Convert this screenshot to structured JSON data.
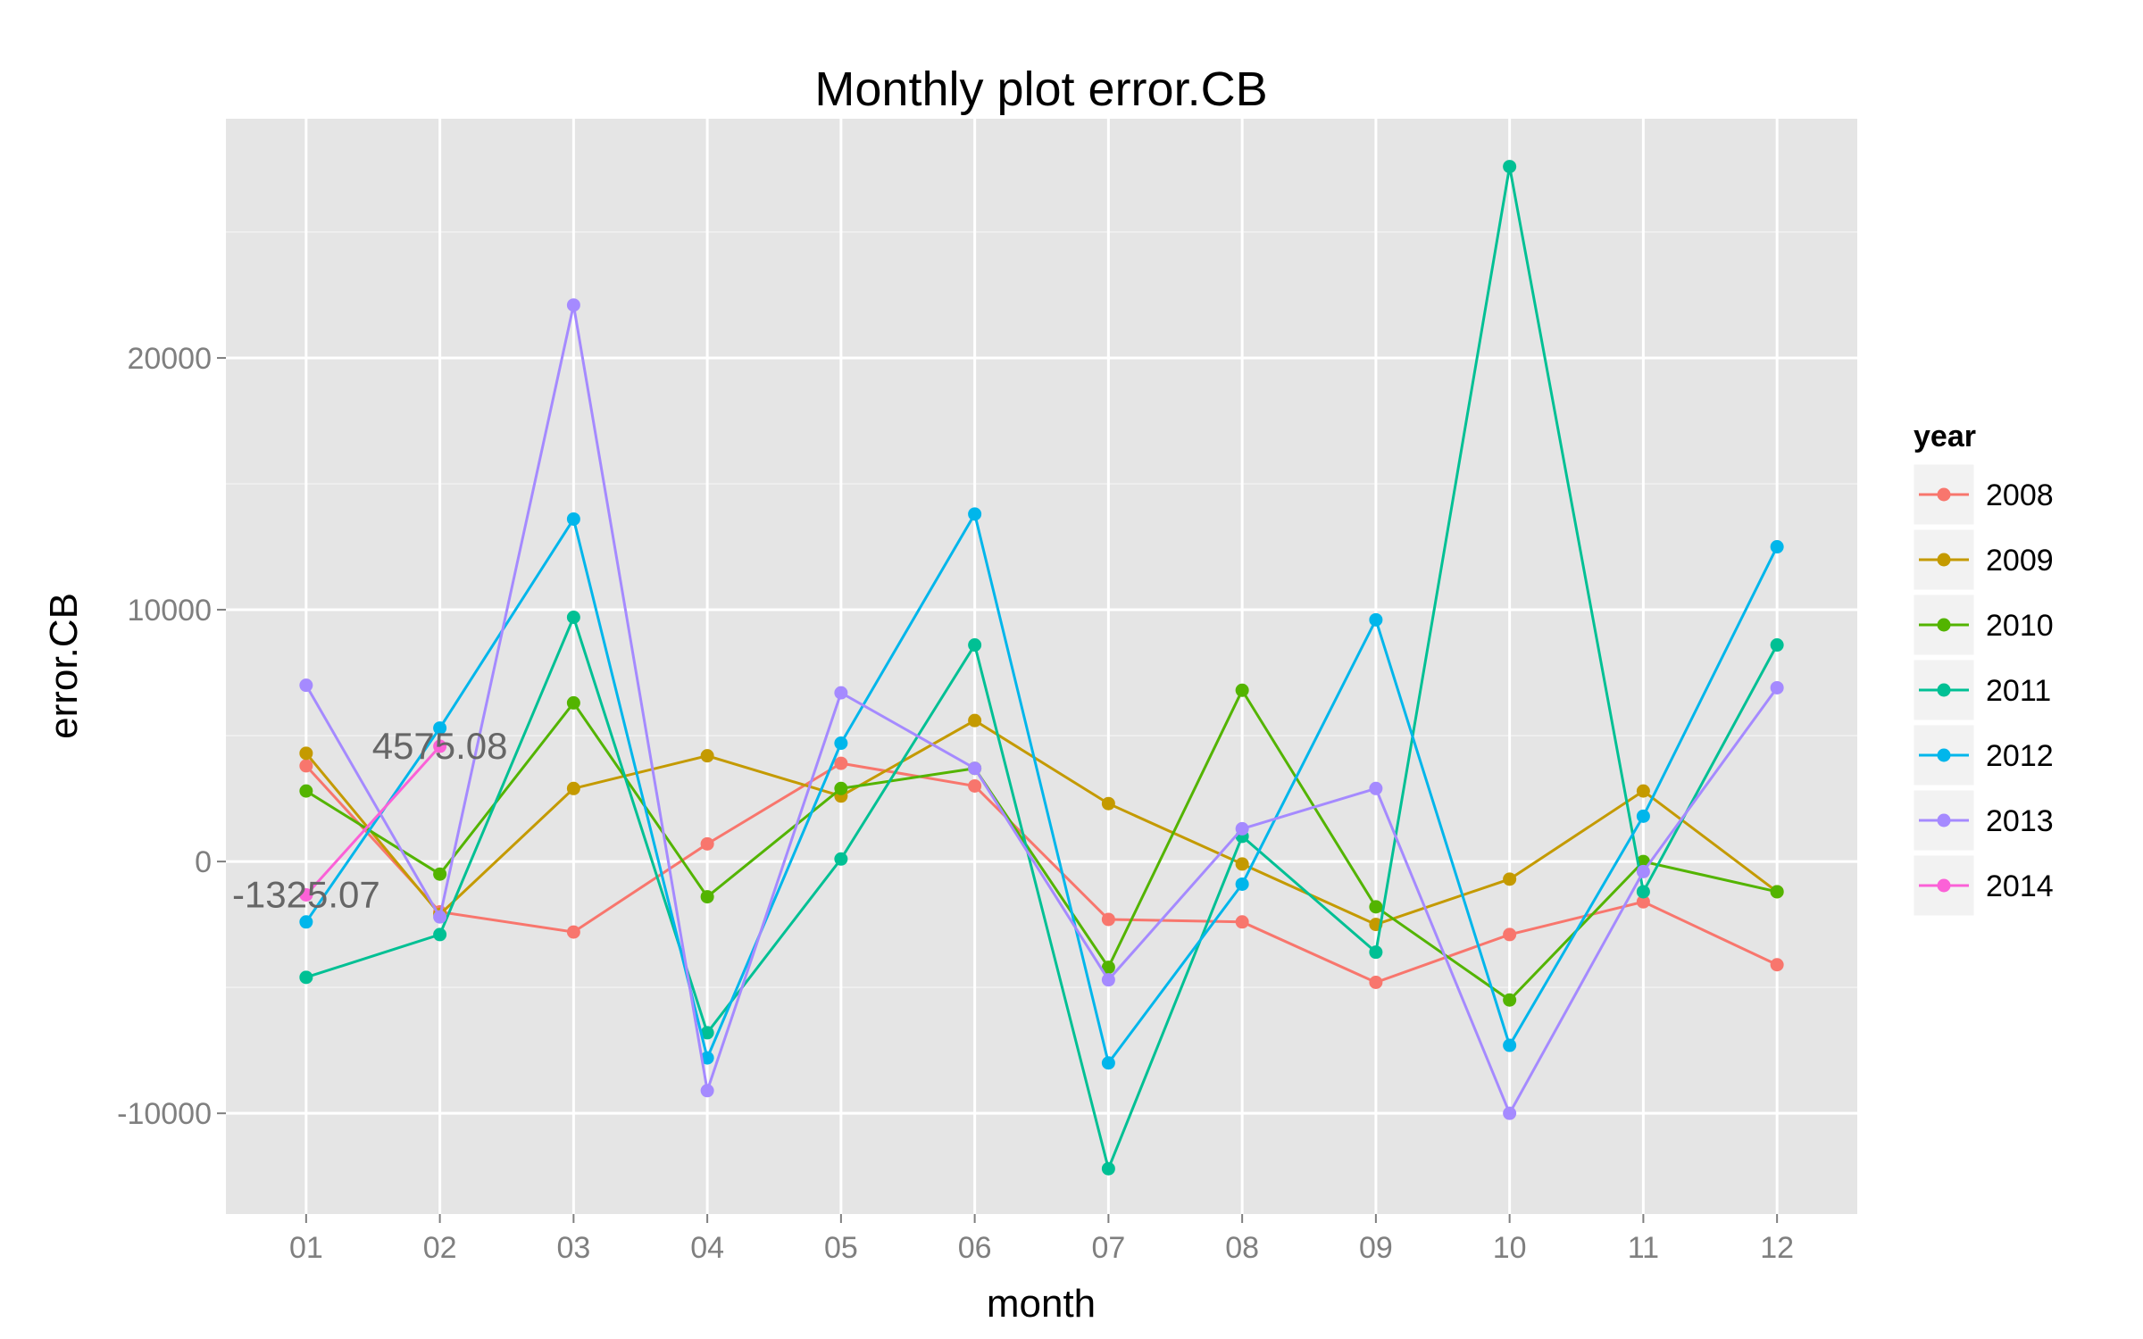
{
  "chart_data": {
    "type": "line",
    "title": "Monthly plot error.CB",
    "xlabel": "month",
    "ylabel": "error.CB",
    "categories": [
      "01",
      "02",
      "03",
      "04",
      "05",
      "06",
      "07",
      "08",
      "09",
      "10",
      "11",
      "12"
    ],
    "ylim": [
      -14000,
      29500
    ],
    "yticks": [
      -10000,
      0,
      10000,
      20000
    ],
    "ytick_labels": [
      "-10000",
      "0",
      "10000",
      "20000"
    ],
    "grid": true,
    "legend": {
      "title": "year",
      "position": "right"
    },
    "series": [
      {
        "name": "2008",
        "color": "#F8766D",
        "values": [
          3800,
          -2000,
          -2800,
          700,
          3900,
          3000,
          -2300,
          -2400,
          -4800,
          -2900,
          -1600,
          -4100
        ]
      },
      {
        "name": "2009",
        "color": "#C49A00",
        "values": [
          4300,
          -2100,
          2900,
          4200,
          2600,
          5600,
          2300,
          -100,
          -2500,
          -700,
          2800,
          -1200
        ]
      },
      {
        "name": "2010",
        "color": "#53B400",
        "values": [
          2800,
          -500,
          6300,
          -1400,
          2900,
          3700,
          -4200,
          6800,
          -1800,
          -5500,
          0,
          -1200
        ]
      },
      {
        "name": "2011",
        "color": "#00C094",
        "values": [
          -4600,
          -2900,
          9700,
          -6800,
          100,
          8600,
          -12200,
          1000,
          -3600,
          27600,
          -1200,
          8600
        ]
      },
      {
        "name": "2012",
        "color": "#00B6EB",
        "values": [
          -2400,
          5300,
          13600,
          -7800,
          4700,
          13800,
          -8000,
          -900,
          9600,
          -7300,
          1800,
          12500
        ]
      },
      {
        "name": "2013",
        "color": "#A58AFF",
        "values": [
          7000,
          -2200,
          22100,
          -9100,
          6700,
          3700,
          -4700,
          1300,
          2900,
          -10000,
          -400,
          6900
        ]
      },
      {
        "name": "2014",
        "color": "#FB61D7",
        "values": [
          -1325.07,
          4575.08,
          null,
          null,
          null,
          null,
          null,
          null,
          null,
          null,
          null,
          null
        ]
      }
    ],
    "annotations": [
      {
        "text": "-1325.07",
        "x": "01",
        "y": -1325.07
      },
      {
        "text": "4575.08",
        "x": "02",
        "y": 4575.08
      }
    ]
  }
}
